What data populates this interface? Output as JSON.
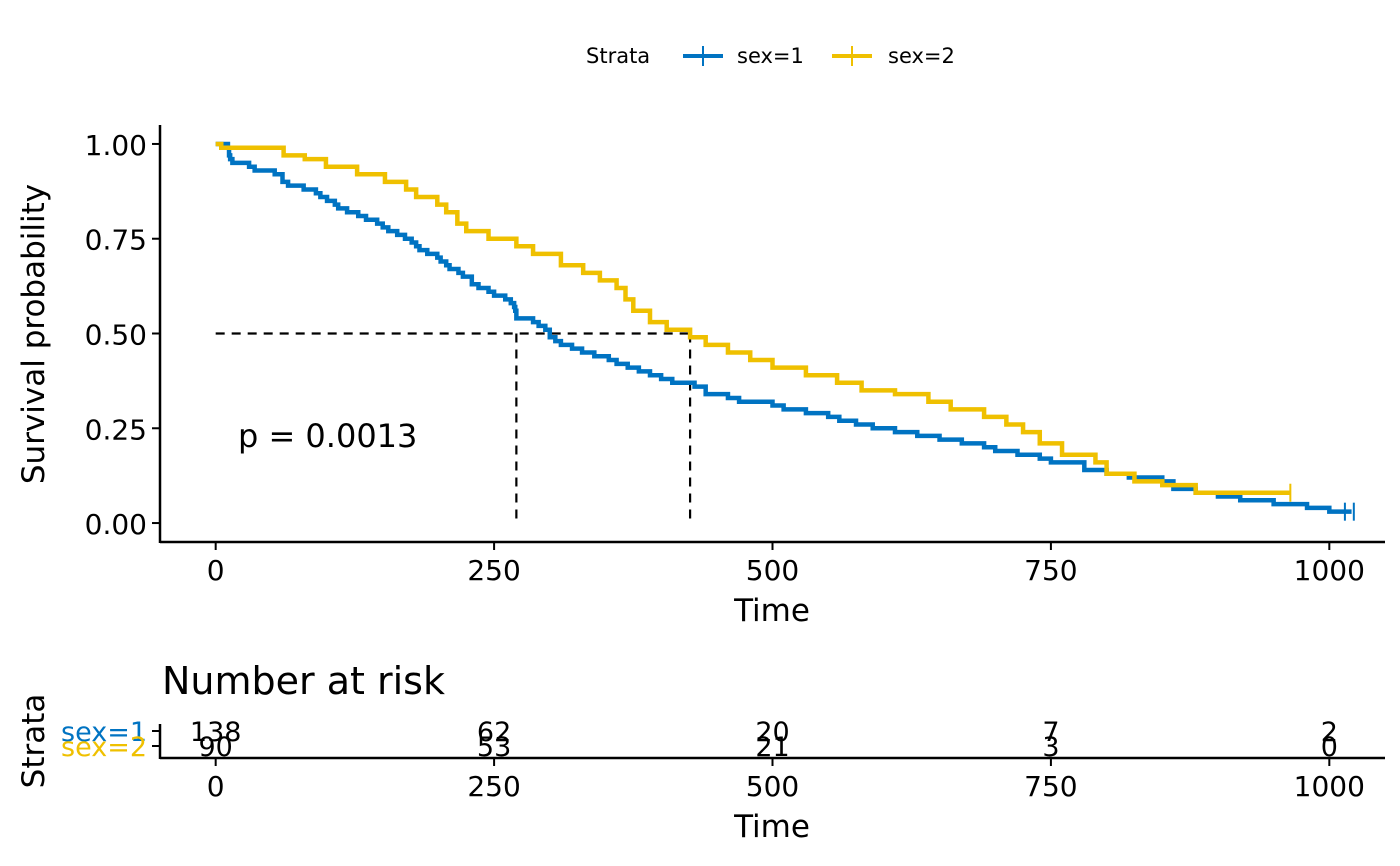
{
  "colors": {
    "sex1": "#0073C2",
    "sex2": "#EFC000",
    "axis": "#000000",
    "background": "#FFFFFF"
  },
  "legend": {
    "title": "Strata",
    "position": "top",
    "items": [
      {
        "label": "sex=1",
        "color": "#0073C2"
      },
      {
        "label": "sex=2",
        "color": "#EFC000"
      }
    ]
  },
  "annotation": {
    "pvalue_text": "p = 0.0013",
    "pvalue_pos": {
      "x": 20,
      "y": 0.2
    }
  },
  "chart_data": [
    {
      "type": "line",
      "subtype": "kaplan-meier",
      "title": "",
      "xlabel": "Time",
      "ylabel": "Survival probability",
      "xlim": [
        -50,
        1050
      ],
      "ylim": [
        -0.05,
        1.05
      ],
      "x_ticks": [
        0,
        250,
        500,
        750,
        1000
      ],
      "x_tick_labels": [
        "0",
        "250",
        "500",
        "750",
        "1000"
      ],
      "y_ticks": [
        0,
        0.25,
        0.5,
        0.75,
        1
      ],
      "y_tick_labels": [
        "0.00",
        "0.25",
        "0.50",
        "0.75",
        "1.00"
      ],
      "grid": false,
      "median_lines": {
        "y": 0.5,
        "x": [
          270,
          426
        ]
      },
      "series": [
        {
          "name": "sex=1",
          "color": "#0073C2",
          "steps": [
            [
              0,
              1
            ],
            [
              11,
              0.99
            ],
            [
              12,
              0.97
            ],
            [
              13,
              0.96
            ],
            [
              15,
              0.95
            ],
            [
              30,
              0.94
            ],
            [
              35,
              0.93
            ],
            [
              53,
              0.92
            ],
            [
              60,
              0.9
            ],
            [
              65,
              0.89
            ],
            [
              79,
              0.88
            ],
            [
              90,
              0.87
            ],
            [
              94,
              0.86
            ],
            [
              100,
              0.85
            ],
            [
              107,
              0.84
            ],
            [
              110,
              0.83
            ],
            [
              118,
              0.82
            ],
            [
              128,
              0.81
            ],
            [
              135,
              0.8
            ],
            [
              145,
              0.79
            ],
            [
              150,
              0.78
            ],
            [
              155,
              0.77
            ],
            [
              163,
              0.76
            ],
            [
              170,
              0.75
            ],
            [
              176,
              0.74
            ],
            [
              180,
              0.73
            ],
            [
              183,
              0.72
            ],
            [
              190,
              0.71
            ],
            [
              199,
              0.7
            ],
            [
              202,
              0.69
            ],
            [
              207,
              0.68
            ],
            [
              210,
              0.67
            ],
            [
              218,
              0.66
            ],
            [
              222,
              0.65
            ],
            [
              230,
              0.63
            ],
            [
              236,
              0.62
            ],
            [
              245,
              0.61
            ],
            [
              250,
              0.6
            ],
            [
              260,
              0.59
            ],
            [
              265,
              0.58
            ],
            [
              268,
              0.57
            ],
            [
              269,
              0.56
            ],
            [
              270,
              0.54
            ],
            [
              285,
              0.53
            ],
            [
              290,
              0.52
            ],
            [
              296,
              0.51
            ],
            [
              300,
              0.49
            ],
            [
              305,
              0.48
            ],
            [
              310,
              0.47
            ],
            [
              320,
              0.46
            ],
            [
              329,
              0.45
            ],
            [
              340,
              0.44
            ],
            [
              353,
              0.43
            ],
            [
              360,
              0.42
            ],
            [
              370,
              0.41
            ],
            [
              380,
              0.4
            ],
            [
              390,
              0.39
            ],
            [
              400,
              0.38
            ],
            [
              410,
              0.37
            ],
            [
              430,
              0.36
            ],
            [
              440,
              0.34
            ],
            [
              460,
              0.33
            ],
            [
              470,
              0.32
            ],
            [
              500,
              0.31
            ],
            [
              510,
              0.3
            ],
            [
              530,
              0.29
            ],
            [
              550,
              0.28
            ],
            [
              560,
              0.27
            ],
            [
              575,
              0.26
            ],
            [
              590,
              0.25
            ],
            [
              610,
              0.24
            ],
            [
              630,
              0.23
            ],
            [
              650,
              0.22
            ],
            [
              670,
              0.21
            ],
            [
              690,
              0.2
            ],
            [
              700,
              0.19
            ],
            [
              720,
              0.18
            ],
            [
              740,
              0.17
            ],
            [
              750,
              0.16
            ],
            [
              780,
              0.14
            ],
            [
              800,
              0.13
            ],
            [
              820,
              0.12
            ],
            [
              850,
              0.11
            ],
            [
              860,
              0.09
            ],
            [
              880,
              0.08
            ],
            [
              900,
              0.07
            ],
            [
              920,
              0.06
            ],
            [
              950,
              0.05
            ],
            [
              980,
              0.04
            ],
            [
              1000,
              0.03
            ],
            [
              1010,
              0.03
            ],
            [
              1020,
              0.03
            ]
          ],
          "censor_x": [
            1014,
            1022
          ]
        },
        {
          "name": "sex=2",
          "color": "#EFC000",
          "steps": [
            [
              0,
              1
            ],
            [
              5,
              0.99
            ],
            [
              61,
              0.97
            ],
            [
              80,
              0.96
            ],
            [
              99,
              0.94
            ],
            [
              127,
              0.92
            ],
            [
              152,
              0.9
            ],
            [
              171,
              0.88
            ],
            [
              180,
              0.86
            ],
            [
              199,
              0.84
            ],
            [
              207,
              0.82
            ],
            [
              217,
              0.79
            ],
            [
              225,
              0.77
            ],
            [
              245,
              0.75
            ],
            [
              270,
              0.73
            ],
            [
              285,
              0.71
            ],
            [
              310,
              0.68
            ],
            [
              330,
              0.66
            ],
            [
              345,
              0.64
            ],
            [
              360,
              0.62
            ],
            [
              368,
              0.59
            ],
            [
              375,
              0.56
            ],
            [
              390,
              0.53
            ],
            [
              405,
              0.51
            ],
            [
              426,
              0.49
            ],
            [
              440,
              0.47
            ],
            [
              460,
              0.45
            ],
            [
              480,
              0.43
            ],
            [
              500,
              0.41
            ],
            [
              530,
              0.39
            ],
            [
              558,
              0.37
            ],
            [
              580,
              0.35
            ],
            [
              610,
              0.34
            ],
            [
              640,
              0.32
            ],
            [
              660,
              0.3
            ],
            [
              690,
              0.28
            ],
            [
              710,
              0.26
            ],
            [
              725,
              0.24
            ],
            [
              740,
              0.21
            ],
            [
              760,
              0.18
            ],
            [
              790,
              0.16
            ],
            [
              800,
              0.13
            ],
            [
              825,
              0.11
            ],
            [
              850,
              0.1
            ],
            [
              880,
              0.08
            ],
            [
              910,
              0.08
            ],
            [
              965,
              0.08
            ]
          ],
          "censor_x": [
            965
          ]
        }
      ]
    },
    {
      "type": "table",
      "title": "Number at risk",
      "xlabel": "Time",
      "ylabel": "Strata",
      "xlim": [
        -50,
        1050
      ],
      "x_ticks": [
        0,
        250,
        500,
        750,
        1000
      ],
      "x_tick_labels": [
        "0",
        "250",
        "500",
        "750",
        "1000"
      ],
      "rows": [
        {
          "label": "sex=1",
          "color": "#0073C2",
          "values": [
            "138",
            "62",
            "20",
            "7",
            "2"
          ]
        },
        {
          "label": "sex=2",
          "color": "#EFC000",
          "values": [
            "90",
            "53",
            "21",
            "3",
            "0"
          ]
        }
      ]
    }
  ]
}
